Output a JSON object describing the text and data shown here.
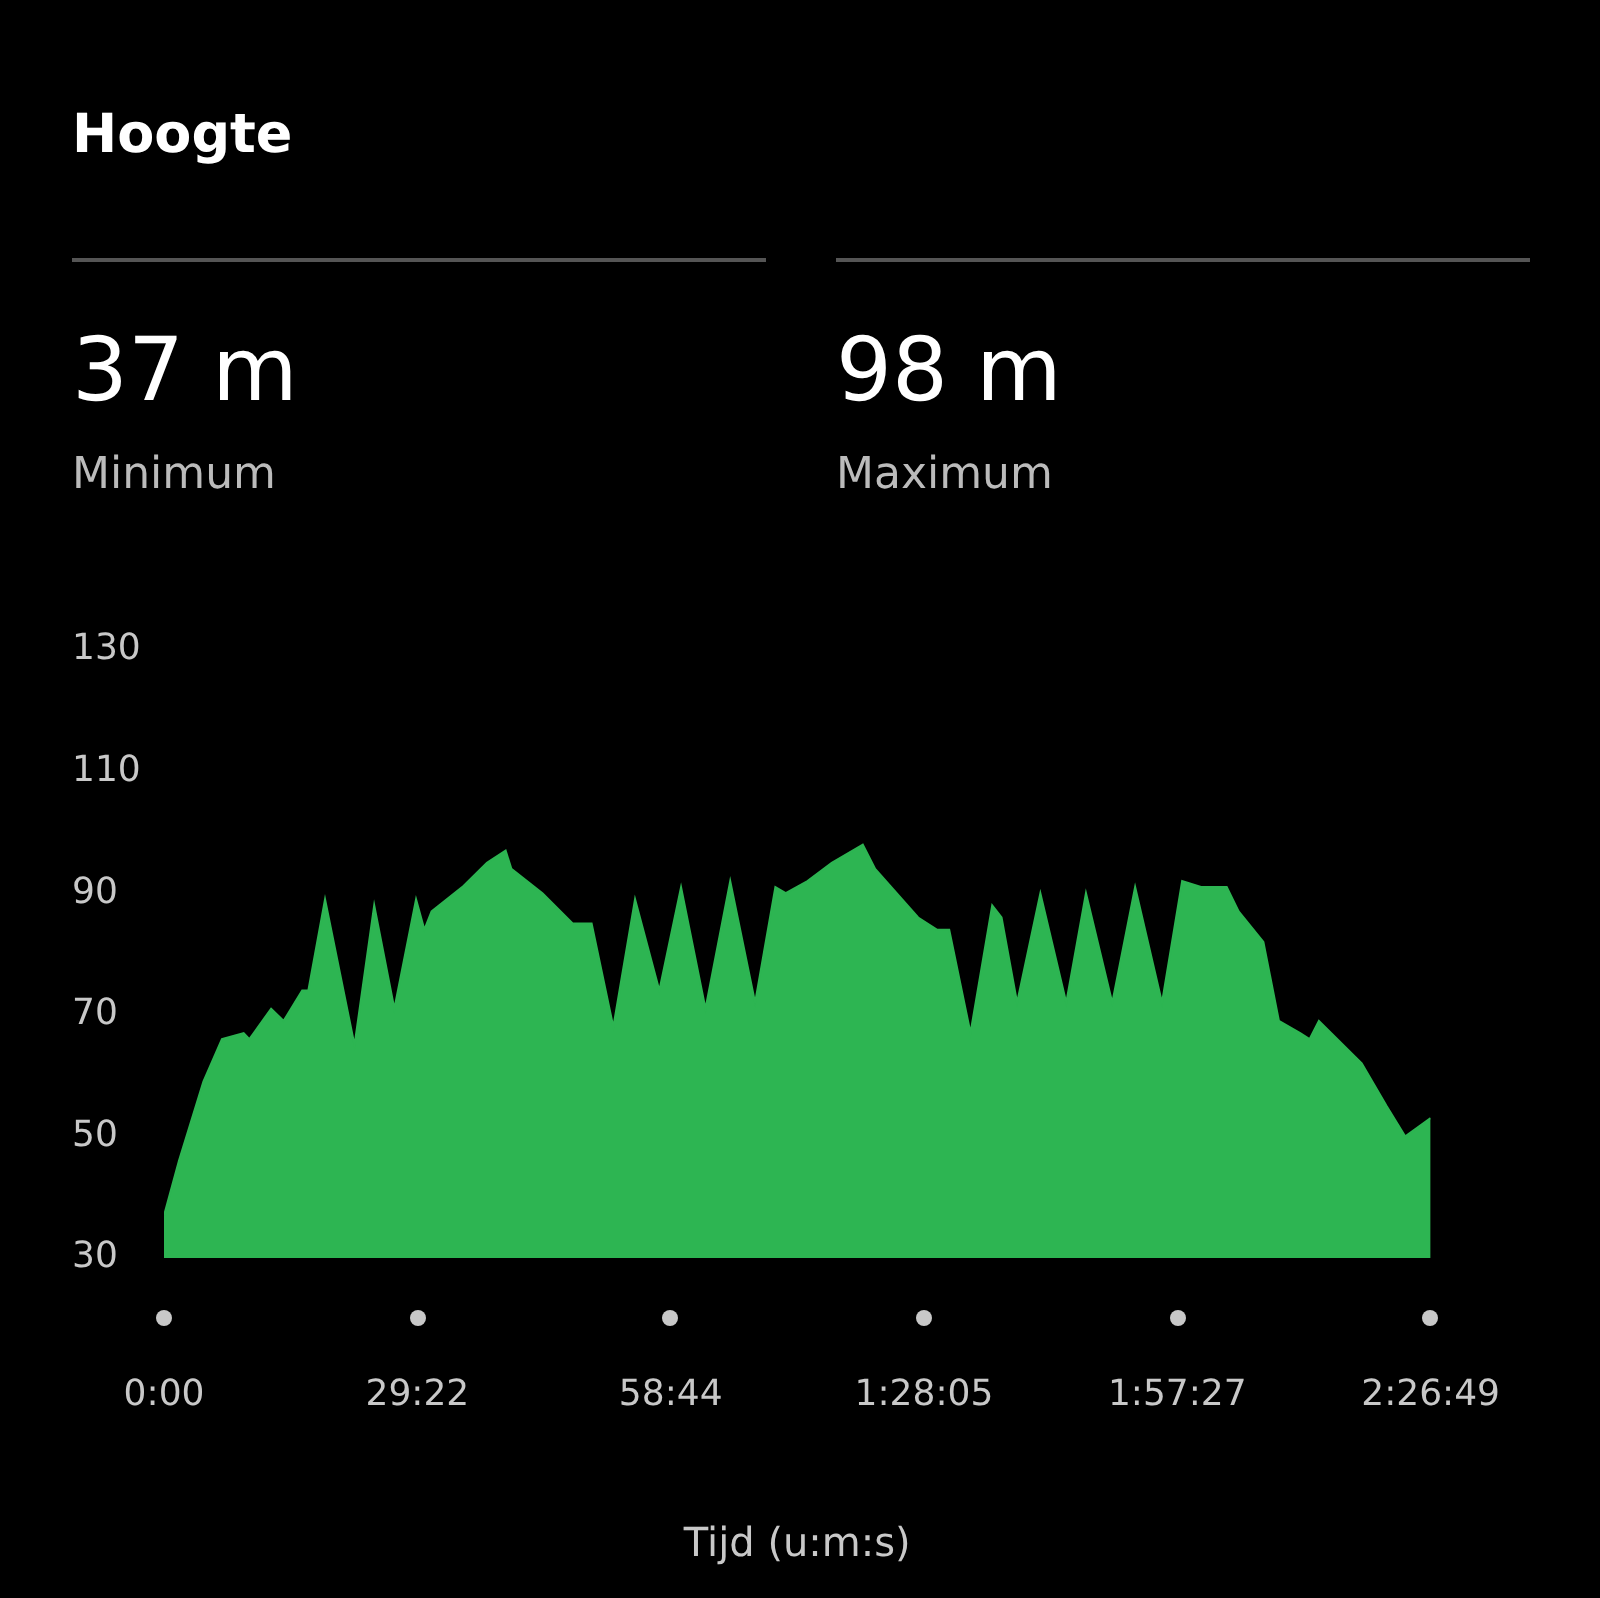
{
  "chart_data": {
    "type": "area",
    "title": "Hoogte",
    "annotations": [
      "37 m",
      "Minimum",
      "98 m",
      "Maximum"
    ],
    "xlabel": "Tijd (u:m:s)",
    "x": [
      0,
      104,
      274,
      403,
      554,
      594,
      745,
      832,
      961,
      1004,
      1120,
      1325,
      1462,
      1602,
      1753,
      1811,
      1861,
      2074,
      2246,
      2376,
      2416,
      2632,
      2844,
      2974,
      3125,
      3276,
      3445,
      3596,
      3766,
      3938,
      4111,
      4252,
      4324,
      4475,
      4644,
      4860,
      4946,
      5245,
      5375,
      5461,
      5609,
      5760,
      5825,
      5933,
      6095,
      6275,
      6412,
      6595,
      6754,
      6941,
      7081,
      7218,
      7391,
      7474,
      7646,
      7754,
      7902,
      7967,
      8032,
      8330,
      8503,
      8633,
      8809
    ],
    "values": [
      37,
      46,
      59,
      66,
      67,
      66,
      71,
      69,
      74,
      74,
      89,
      65,
      88,
      71,
      89,
      84,
      87,
      91,
      95,
      97,
      94,
      90,
      85,
      85,
      68,
      89,
      74,
      91,
      71,
      92,
      72,
      91,
      90,
      92,
      95,
      98,
      94,
      86,
      84,
      84,
      67,
      88,
      86,
      72,
      90,
      72,
      90,
      72,
      91,
      72,
      92,
      91,
      91,
      87,
      82,
      69,
      67,
      66,
      69,
      62,
      55,
      50,
      53
    ],
    "color": "#2db552",
    "xlim": [
      0,
      8809
    ],
    "xticks": [
      {
        "value": 0,
        "label": "0:00"
      },
      {
        "value": 1762,
        "label": "29:22"
      },
      {
        "value": 3524,
        "label": "58:44"
      },
      {
        "value": 5285,
        "label": "1:28:05"
      },
      {
        "value": 7047,
        "label": "1:57:27"
      },
      {
        "value": 8809,
        "label": "2:26:49"
      }
    ],
    "ylim": [
      30,
      130
    ],
    "yticks": [
      30,
      50,
      70,
      90,
      110,
      130
    ]
  }
}
